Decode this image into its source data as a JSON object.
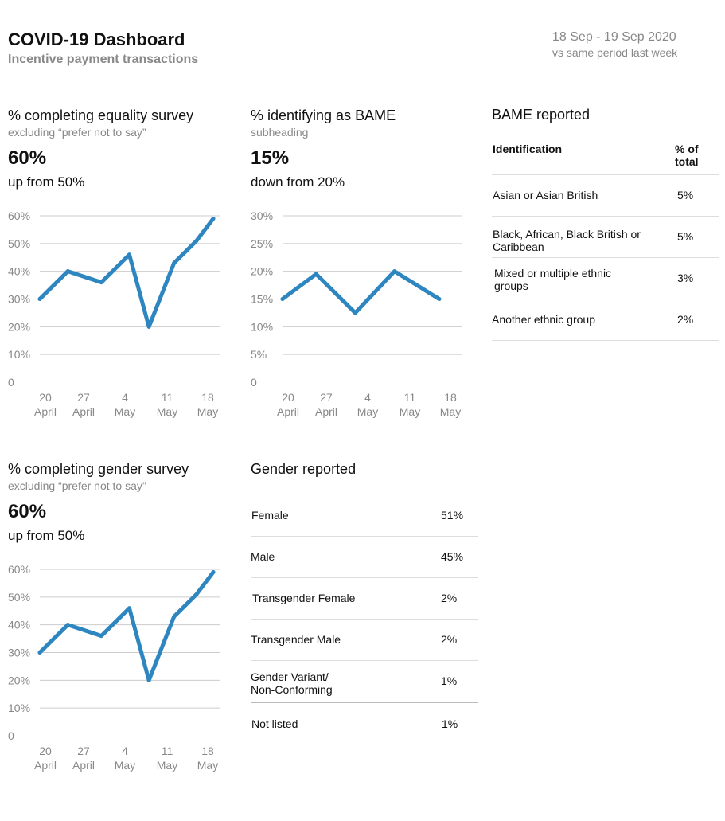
{
  "header": {
    "title": "COVID-19 Dashboard",
    "subtitle": "Incentive payment transactions",
    "date_range": "18 Sep - 19 Sep 2020",
    "comparison": "vs same period last week"
  },
  "colors": {
    "line": "#2e86c1",
    "grid": "#cccccc",
    "muted": "#888888"
  },
  "panels": {
    "equality": {
      "title": "% completing equality survey",
      "subtitle": "excluding “prefer not to say”",
      "value": "60%",
      "change": "up from 50%"
    },
    "bame": {
      "title": "% identifying as BAME",
      "subtitle": "subheading",
      "value": "15%",
      "change": "down from 20%"
    },
    "gender": {
      "title": "% completing gender survey",
      "subtitle": "excluding “prefer not to say”",
      "value": "60%",
      "change": "up from 50%"
    }
  },
  "bame_table": {
    "title": "BAME reported",
    "col1": "Identification",
    "col2": "% of total",
    "rows": [
      {
        "label": "Asian or Asian British",
        "value": "5%"
      },
      {
        "label": "Black, African, Black British or Caribbean",
        "value": "5%"
      },
      {
        "label": "Mixed or multiple ethnic groups",
        "value": "3%"
      },
      {
        "label": "Another ethnic group",
        "value": "2%"
      }
    ]
  },
  "gender_table": {
    "title": "Gender reported",
    "rows": [
      {
        "label": "Female",
        "value": "51%"
      },
      {
        "label": "Male",
        "value": "45%"
      },
      {
        "label": "Transgender Female",
        "value": "2%"
      },
      {
        "label": "Transgender Male",
        "value": "2%"
      },
      {
        "label": "Gender Variant/ Non-Conforming",
        "value": "1%"
      },
      {
        "label": "Not listed",
        "value": "1%"
      }
    ]
  },
  "chart_data": [
    {
      "type": "line",
      "x": [
        "20 April",
        "27 April",
        "4 May",
        "11 May",
        "18 May"
      ],
      "x_ticks": [
        [
          "20",
          "April"
        ],
        [
          "27",
          "April"
        ],
        [
          "4",
          "May"
        ],
        [
          "11",
          "May"
        ],
        [
          "18",
          "May"
        ]
      ],
      "y_ticks": [
        "0",
        "10%",
        "20%",
        "30%",
        "40%",
        "50%",
        "60%"
      ],
      "ylim": [
        0,
        60
      ],
      "xlim": [
        0,
        31
      ],
      "grid": true,
      "series": [
        {
          "x": [
            0,
            5,
            11,
            16,
            19.5,
            24,
            28,
            31
          ],
          "values": [
            30,
            40,
            36,
            46,
            20,
            43,
            51,
            59
          ]
        }
      ]
    },
    {
      "type": "line",
      "x": [
        "20 April",
        "27 April",
        "4 May",
        "11 May",
        "18 May"
      ],
      "x_ticks": [
        [
          "20",
          "April"
        ],
        [
          "27",
          "April"
        ],
        [
          "4",
          "May"
        ],
        [
          "11",
          "May"
        ],
        [
          "18",
          "May"
        ]
      ],
      "y_ticks": [
        "0",
        "5%",
        "10%",
        "15%",
        "20%",
        "25%",
        "30%"
      ],
      "ylim": [
        0,
        30
      ],
      "xlim": [
        0,
        31
      ],
      "grid": true,
      "series": [
        {
          "x": [
            0,
            6,
            13,
            20,
            28
          ],
          "values": [
            15,
            19.5,
            12.5,
            20,
            15
          ]
        }
      ]
    },
    {
      "type": "line",
      "x": [
        "20 April",
        "27 April",
        "4 May",
        "11 May",
        "18 May"
      ],
      "x_ticks": [
        [
          "20",
          "April"
        ],
        [
          "27",
          "April"
        ],
        [
          "4",
          "May"
        ],
        [
          "11",
          "May"
        ],
        [
          "18",
          "May"
        ]
      ],
      "y_ticks": [
        "0",
        "10%",
        "20%",
        "30%",
        "40%",
        "50%",
        "60%"
      ],
      "ylim": [
        0,
        60
      ],
      "xlim": [
        0,
        31
      ],
      "grid": true,
      "series": [
        {
          "x": [
            0,
            5,
            11,
            16,
            19.5,
            24,
            28,
            31
          ],
          "values": [
            30,
            40,
            36,
            46,
            20,
            43,
            51,
            59
          ]
        }
      ]
    }
  ]
}
